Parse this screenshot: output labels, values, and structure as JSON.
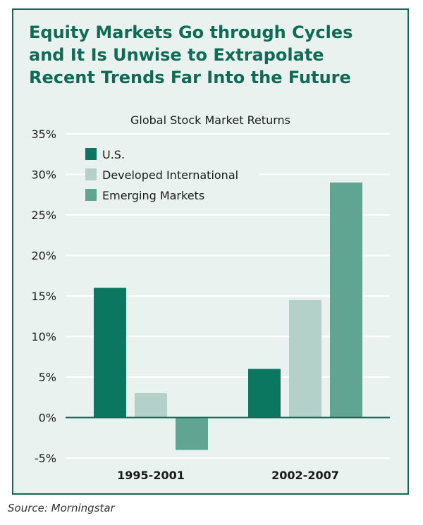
{
  "header": {
    "title": "Equity Markets Go through Cycles\nand It Is Unwise to Extrapolate\nRecent Trends Far Into the Future"
  },
  "source": "Source: Morningstar",
  "colors": {
    "frame": "#0f6b56",
    "panel_bg": "#e9f2ef",
    "grid": "#ffffff",
    "zero_line": "#0f6b56"
  },
  "chart_data": {
    "type": "bar",
    "title": "Global Stock Market Returns",
    "xlabel": "",
    "ylabel": "",
    "categories": [
      "1995-2001",
      "2002-2007"
    ],
    "series": [
      {
        "name": "U.S.",
        "color": "#0c7761",
        "values": [
          16,
          6
        ]
      },
      {
        "name": "Developed International",
        "color": "#b3d1c9",
        "values": [
          3,
          14.5
        ]
      },
      {
        "name": "Emerging Markets",
        "color": "#5fa591",
        "values": [
          -4,
          29
        ]
      }
    ],
    "ylim": [
      -5,
      35
    ],
    "yticks": [
      35,
      30,
      25,
      20,
      15,
      10,
      5,
      0,
      -5
    ],
    "ytick_labels": [
      "35%",
      "30%",
      "25%",
      "20%",
      "15%",
      "10%",
      "5%",
      "0%",
      "-5%"
    ],
    "grid": true,
    "legend_position": "top-left"
  }
}
